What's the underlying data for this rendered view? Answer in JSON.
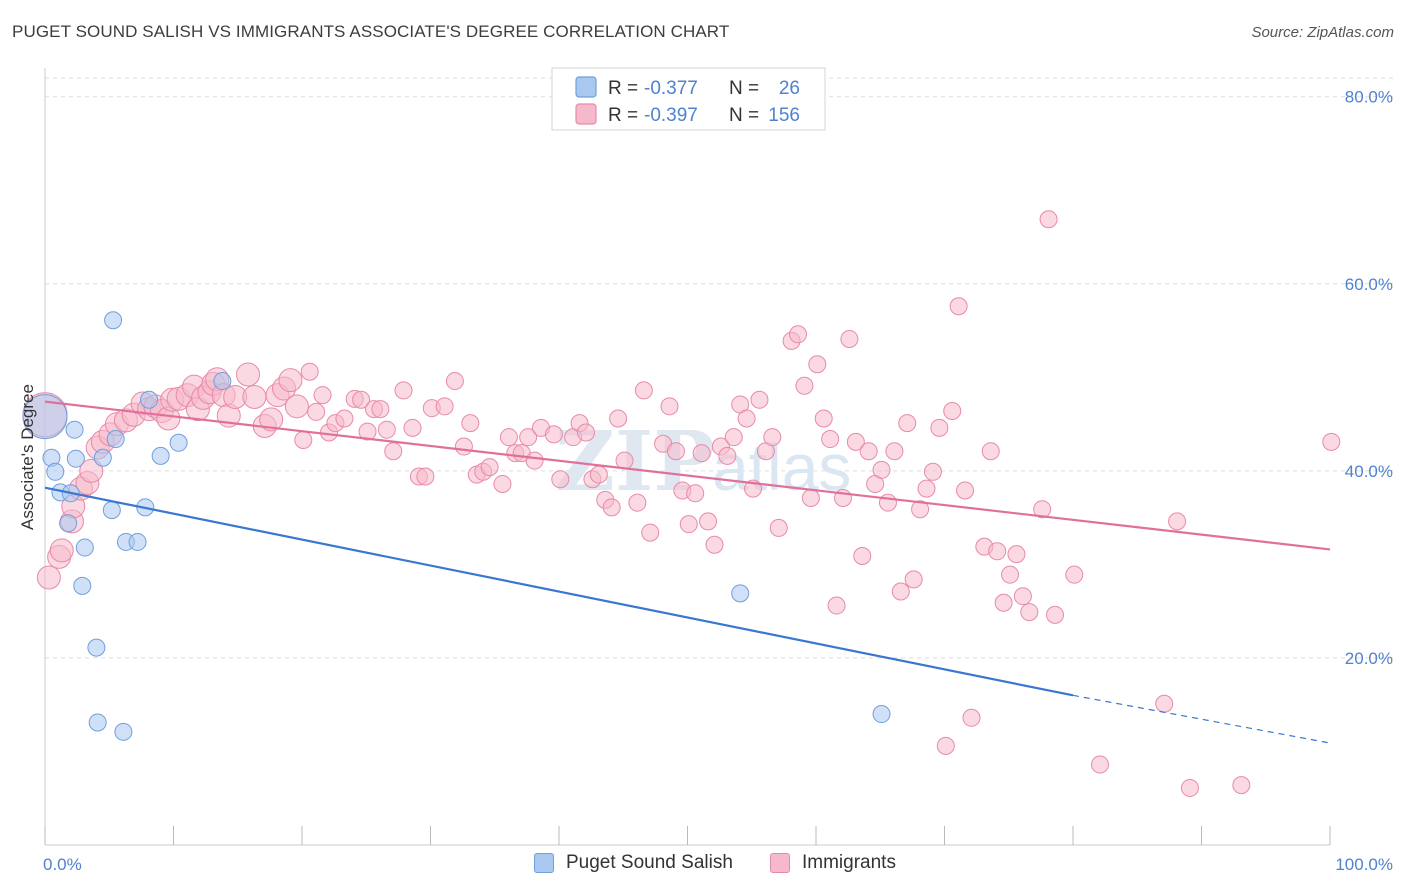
{
  "header": {
    "title": "PUGET SOUND SALISH VS IMMIGRANTS ASSOCIATE'S DEGREE CORRELATION CHART",
    "source": "Source: ZipAtlas.com"
  },
  "watermark": {
    "zip": "ZIP",
    "atlas": "atlas"
  },
  "colors": {
    "blue_fill": "#a9c8f0",
    "blue_stroke": "#6f9fdc",
    "blue_line": "#3a77d0",
    "pink_fill": "#f5b9cb",
    "pink_stroke": "#e88aa9",
    "pink_line": "#e0709a",
    "axis_label": "#4f82cf",
    "grid": "#dddddd"
  },
  "legend_top": {
    "rows": [
      {
        "r_label": "R = ",
        "r_value": "-0.377",
        "n_label": "N = ",
        "n_value": "26"
      },
      {
        "r_label": "R = ",
        "r_value": "-0.397",
        "n_label": "N = ",
        "n_value": "156"
      }
    ]
  },
  "legend_bottom": {
    "series1": "Puget Sound Salish",
    "series2": "Immigrants"
  },
  "chart_data": {
    "type": "scatter",
    "title": "PUGET SOUND SALISH VS IMMIGRANTS ASSOCIATE'S DEGREE CORRELATION CHART",
    "xlabel": "",
    "ylabel": "Associate's Degree",
    "xlim": [
      0,
      100
    ],
    "ylim": [
      0,
      82
    ],
    "x_tick_labels": [
      "0.0%",
      "100.0%"
    ],
    "y_ticks": [
      20,
      40,
      60,
      80
    ],
    "y_tick_labels": [
      "20.0%",
      "40.0%",
      "60.0%",
      "80.0%"
    ],
    "grid": true,
    "legend_position": "top-center",
    "series": [
      {
        "name": "Puget Sound Salish",
        "r": -0.377,
        "n": 26,
        "trend": {
          "x": [
            0,
            80
          ],
          "y": [
            38.2,
            16.0
          ],
          "dashed_to": [
            100,
            10.9
          ]
        },
        "points": [
          [
            0,
            45.8
          ],
          [
            0.5,
            41.4
          ],
          [
            0.8,
            39.9
          ],
          [
            1.2,
            37.7
          ],
          [
            2,
            37.6
          ],
          [
            1.8,
            34.4
          ],
          [
            2.3,
            44.4
          ],
          [
            2.4,
            41.3
          ],
          [
            2.9,
            27.7
          ],
          [
            3.1,
            31.8
          ],
          [
            4,
            21.1
          ],
          [
            4.1,
            13.1
          ],
          [
            4.5,
            41.4
          ],
          [
            5.2,
            35.8
          ],
          [
            5.3,
            56.1
          ],
          [
            5.5,
            43.4
          ],
          [
            6.1,
            12.1
          ],
          [
            6.3,
            32.4
          ],
          [
            7.2,
            32.4
          ],
          [
            7.8,
            36.1
          ],
          [
            8.1,
            47.6
          ],
          [
            9,
            41.6
          ],
          [
            10.4,
            43
          ],
          [
            13.8,
            49.6
          ],
          [
            54.1,
            26.9
          ],
          [
            65.1,
            14
          ]
        ]
      },
      {
        "name": "Immigrants",
        "r": -0.397,
        "n": 156,
        "trend": {
          "x": [
            0,
            100
          ],
          "y": [
            47.4,
            31.6
          ]
        },
        "points": [
          [
            0,
            46
          ],
          [
            0.3,
            28.6
          ],
          [
            1.1,
            30.8
          ],
          [
            1.3,
            31.5
          ],
          [
            2.1,
            34.6
          ],
          [
            2.2,
            36.2
          ],
          [
            2.8,
            38.1
          ],
          [
            3.3,
            38.7
          ],
          [
            3.6,
            40
          ],
          [
            4.1,
            42.5
          ],
          [
            4.5,
            43.1
          ],
          [
            5.1,
            43.9
          ],
          [
            5.6,
            45
          ],
          [
            6.3,
            45.4
          ],
          [
            6.9,
            46
          ],
          [
            7.6,
            47.2
          ],
          [
            8.1,
            46.6
          ],
          [
            8.6,
            46.9
          ],
          [
            9.1,
            46.4
          ],
          [
            9.6,
            45.6
          ],
          [
            9.9,
            47.6
          ],
          [
            10.4,
            47.7
          ],
          [
            11.1,
            48.1
          ],
          [
            11.6,
            49
          ],
          [
            11.9,
            46.6
          ],
          [
            12.3,
            47.8
          ],
          [
            12.8,
            48.4
          ],
          [
            13.1,
            49.3
          ],
          [
            13.4,
            49.8
          ],
          [
            13.9,
            48.1
          ],
          [
            14.3,
            45.9
          ],
          [
            14.8,
            47.9
          ],
          [
            15.8,
            50.3
          ],
          [
            16.3,
            47.9
          ],
          [
            17.1,
            44.8
          ],
          [
            17.6,
            45.5
          ],
          [
            18.1,
            48.1
          ],
          [
            18.6,
            48.8
          ],
          [
            19.1,
            49.7
          ],
          [
            19.6,
            46.9
          ],
          [
            20.1,
            43.3
          ],
          [
            20.6,
            50.6
          ],
          [
            21.1,
            46.3
          ],
          [
            21.6,
            48.1
          ],
          [
            22.1,
            44.1
          ],
          [
            22.6,
            45.1
          ],
          [
            23.3,
            45.6
          ],
          [
            24.1,
            47.7
          ],
          [
            24.6,
            47.6
          ],
          [
            25.1,
            44.2
          ],
          [
            25.6,
            46.6
          ],
          [
            26.1,
            46.6
          ],
          [
            26.6,
            44.4
          ],
          [
            27.1,
            42.1
          ],
          [
            27.9,
            48.6
          ],
          [
            28.6,
            44.6
          ],
          [
            29.1,
            39.4
          ],
          [
            29.6,
            39.4
          ],
          [
            30.1,
            46.7
          ],
          [
            31.1,
            46.9
          ],
          [
            31.9,
            49.6
          ],
          [
            32.6,
            42.6
          ],
          [
            33.1,
            45.1
          ],
          [
            33.6,
            39.6
          ],
          [
            34.1,
            39.9
          ],
          [
            34.6,
            40.4
          ],
          [
            35.6,
            38.6
          ],
          [
            36.1,
            43.6
          ],
          [
            36.6,
            41.9
          ],
          [
            37.1,
            41.9
          ],
          [
            37.6,
            43.6
          ],
          [
            38.1,
            41.1
          ],
          [
            38.6,
            44.6
          ],
          [
            39.6,
            43.9
          ],
          [
            40.1,
            39.1
          ],
          [
            41.1,
            43.6
          ],
          [
            41.6,
            45.1
          ],
          [
            42.1,
            44.1
          ],
          [
            42.6,
            39.1
          ],
          [
            43.1,
            39.6
          ],
          [
            43.6,
            36.9
          ],
          [
            44.1,
            36.1
          ],
          [
            44.6,
            45.6
          ],
          [
            45.1,
            41.1
          ],
          [
            46.1,
            36.6
          ],
          [
            46.6,
            48.6
          ],
          [
            47.1,
            33.4
          ],
          [
            48.1,
            42.9
          ],
          [
            48.6,
            46.9
          ],
          [
            49.1,
            42.1
          ],
          [
            49.6,
            37.9
          ],
          [
            50.1,
            34.3
          ],
          [
            50.6,
            37.6
          ],
          [
            51.1,
            41.9
          ],
          [
            51.6,
            34.6
          ],
          [
            52.1,
            32.1
          ],
          [
            52.6,
            42.6
          ],
          [
            53.1,
            41.6
          ],
          [
            53.6,
            43.6
          ],
          [
            54.1,
            47.1
          ],
          [
            54.6,
            45.6
          ],
          [
            55.1,
            38.1
          ],
          [
            55.6,
            47.6
          ],
          [
            56.1,
            42.1
          ],
          [
            56.6,
            43.6
          ],
          [
            57.1,
            33.9
          ],
          [
            58.1,
            53.9
          ],
          [
            58.6,
            54.6
          ],
          [
            59.1,
            49.1
          ],
          [
            59.6,
            37.1
          ],
          [
            60.1,
            51.4
          ],
          [
            60.6,
            45.6
          ],
          [
            61.1,
            43.4
          ],
          [
            61.6,
            25.6
          ],
          [
            62.1,
            37.1
          ],
          [
            62.6,
            54.1
          ],
          [
            63.1,
            43.1
          ],
          [
            63.6,
            30.9
          ],
          [
            64.1,
            42.1
          ],
          [
            64.6,
            38.6
          ],
          [
            65.1,
            40.1
          ],
          [
            65.6,
            36.6
          ],
          [
            66.1,
            42.1
          ],
          [
            66.6,
            27.1
          ],
          [
            67.1,
            45.1
          ],
          [
            67.6,
            28.4
          ],
          [
            68.1,
            35.9
          ],
          [
            68.6,
            38.1
          ],
          [
            69.1,
            39.9
          ],
          [
            69.6,
            44.6
          ],
          [
            70.1,
            10.6
          ],
          [
            70.6,
            46.4
          ],
          [
            71.1,
            57.6
          ],
          [
            71.6,
            37.9
          ],
          [
            72.1,
            13.6
          ],
          [
            73.1,
            31.9
          ],
          [
            73.6,
            42.1
          ],
          [
            74.1,
            31.4
          ],
          [
            74.6,
            25.9
          ],
          [
            75.1,
            28.9
          ],
          [
            75.6,
            31.1
          ],
          [
            76.1,
            26.6
          ],
          [
            76.6,
            24.9
          ],
          [
            77.6,
            35.9
          ],
          [
            78.1,
            66.9
          ],
          [
            78.6,
            24.6
          ],
          [
            80.1,
            28.9
          ],
          [
            82.1,
            8.6
          ],
          [
            87.1,
            15.1
          ],
          [
            88.1,
            34.6
          ],
          [
            89.1,
            6.1
          ],
          [
            93.1,
            6.4
          ],
          [
            100.1,
            43.1
          ]
        ]
      }
    ]
  }
}
